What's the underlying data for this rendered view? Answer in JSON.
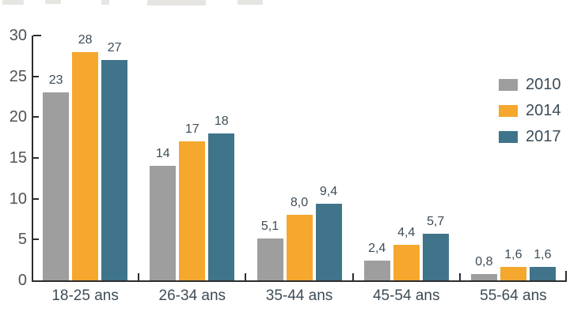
{
  "chart_data": {
    "type": "bar",
    "title": "",
    "xlabel": "",
    "ylabel": "",
    "categories": [
      "18-25 ans",
      "26-34 ans",
      "35-44 ans",
      "45-54 ans",
      "55-64 ans"
    ],
    "series": [
      {
        "name": "2010",
        "color": "#9e9e9e",
        "values": [
          23,
          14,
          5.1,
          2.4,
          0.8
        ],
        "labels": [
          "23",
          "14",
          "5,1",
          "2,4",
          "0,8"
        ]
      },
      {
        "name": "2014",
        "color": "#f5a72e",
        "values": [
          28,
          17,
          8.0,
          4.4,
          1.6
        ],
        "labels": [
          "28",
          "17",
          "8,0",
          "4,4",
          "1,6"
        ]
      },
      {
        "name": "2017",
        "color": "#40748a",
        "values": [
          27,
          18,
          9.4,
          5.7,
          1.6
        ],
        "labels": [
          "27",
          "18",
          "9,4",
          "5,7",
          "1,6"
        ]
      }
    ],
    "ylim": [
      0,
      30
    ],
    "yticks": [
      0,
      5,
      10,
      15,
      20,
      25,
      30
    ],
    "grid": false,
    "legend_position": "right",
    "axis_color": "#2d2d2d",
    "label_color": "#3c4c57",
    "ytick_label_color": "#4e5357"
  },
  "artifact_note": "faint cropped text remnants along top edge"
}
